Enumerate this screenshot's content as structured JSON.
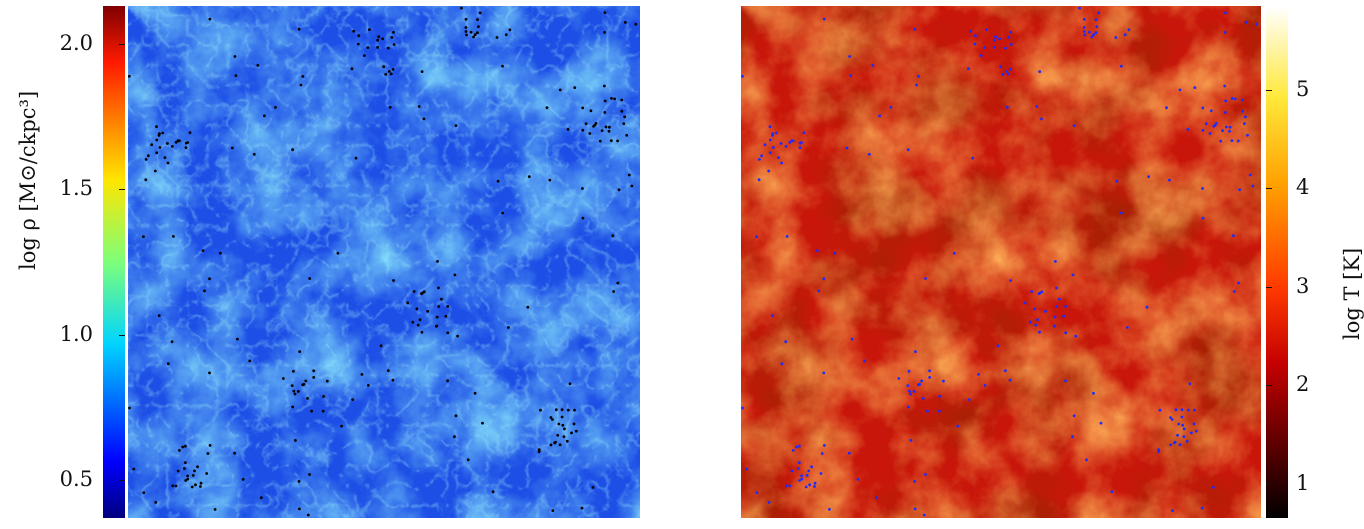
{
  "left": {
    "colorbar_label": "log ρ [M⊙/ckpc³]",
    "ticks": [
      "2.0",
      "1.5",
      "1.0",
      "0.5"
    ],
    "tick_values": [
      2.0,
      1.5,
      1.0,
      0.5
    ],
    "colormap": "jet",
    "range": [
      0.37,
      2.13
    ],
    "point_color": "#000000"
  },
  "right": {
    "colorbar_label": "log T [K]",
    "ticks": [
      "5",
      "4",
      "3",
      "2",
      "1"
    ],
    "tick_values": [
      5,
      4,
      3,
      2,
      1
    ],
    "colormap": "hot",
    "range": [
      0.65,
      5.85
    ],
    "point_color": "#1a2cff"
  },
  "colors": {
    "left_background": "#1d4fe6",
    "left_filament": "#3ec8f0",
    "right_background": "#c8170a",
    "right_filament": "#ff7a1e"
  }
}
